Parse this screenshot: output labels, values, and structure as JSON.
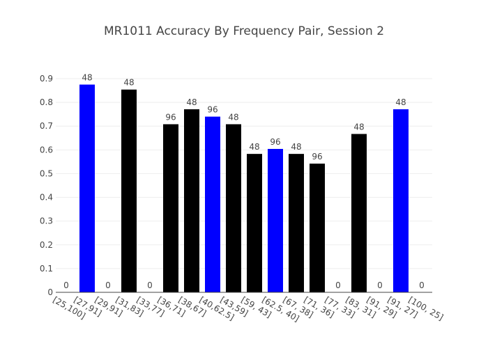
{
  "chart_data": {
    "type": "bar",
    "title": "MR1011 Accuracy By Frequency Pair, Session 2",
    "xlabel": "",
    "ylabel": "",
    "ylim": [
      0,
      0.9
    ],
    "yticks": [
      0,
      0.1,
      0.2,
      0.3,
      0.4,
      0.5,
      0.6,
      0.7,
      0.8,
      0.9
    ],
    "ytick_labels": [
      "0",
      "0.1",
      "0.2",
      "0.3",
      "0.4",
      "0.5",
      "0.6",
      "0.7",
      "0.8",
      "0.9"
    ],
    "grid": true,
    "categories": [
      "[25,100]",
      "[27,91]",
      "[29,91]",
      "[31,83]",
      "[33,77]",
      "[36,71]",
      "[38,67]",
      "[40,62.5]",
      "[43,59]",
      "[59, 43]",
      "[62.5, 40]",
      "[67, 38]",
      "[71, 36]",
      "[77, 33]",
      "[83, 31]",
      "[91, 29]",
      "[91, 27]",
      "[100, 25]"
    ],
    "values": [
      0,
      0.875,
      0,
      0.854,
      0,
      0.708,
      0.771,
      0.74,
      0.708,
      0.583,
      0.604,
      0.583,
      0.542,
      0,
      0.667,
      0,
      0.771,
      0
    ],
    "bar_labels": [
      "0",
      "48",
      "0",
      "48",
      "0",
      "96",
      "48",
      "96",
      "48",
      "48",
      "96",
      "48",
      "96",
      "0",
      "48",
      "0",
      "48",
      "0"
    ],
    "colors": [
      "#000000",
      "#0000ff",
      "#000000",
      "#000000",
      "#000000",
      "#000000",
      "#000000",
      "#0000ff",
      "#000000",
      "#000000",
      "#0000ff",
      "#000000",
      "#000000",
      "#000000",
      "#000000",
      "#000000",
      "#0000ff",
      "#000000"
    ]
  }
}
